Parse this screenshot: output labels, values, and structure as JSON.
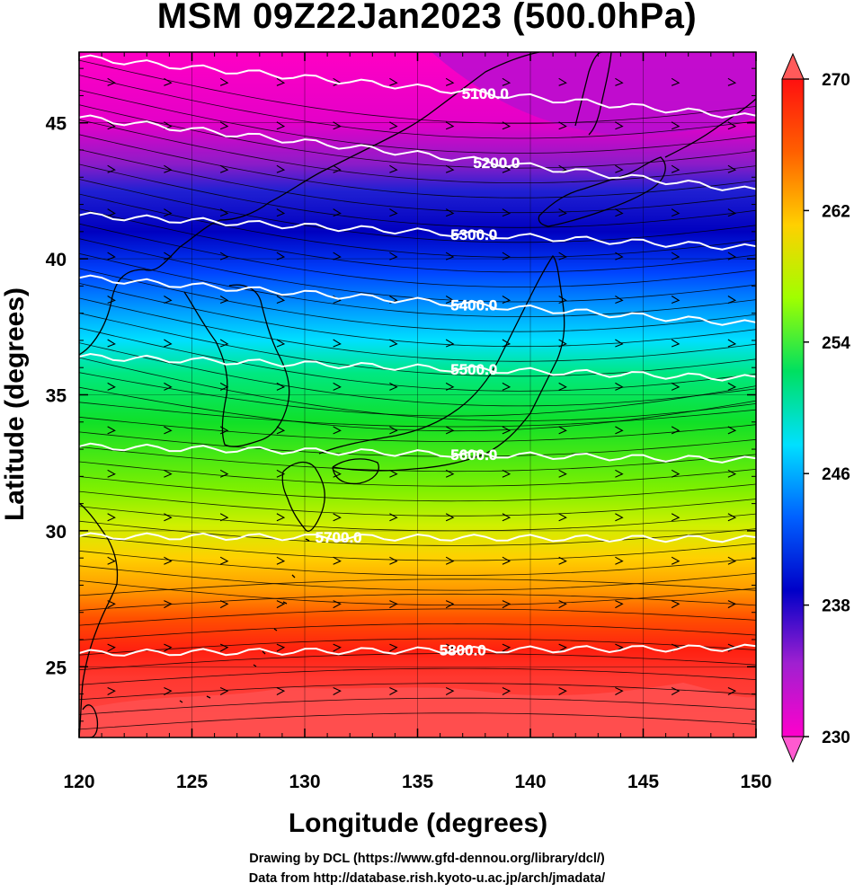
{
  "title": "MSM 09Z22Jan2023 (500.0hPa)",
  "credits": {
    "line1": "Drawing by DCL (https://www.gfd-dennou.org/library/dcl/)",
    "line2": "Data from http://database.rish.kyoto-u.ac.jp/arch/jmadata/"
  },
  "map": {
    "xlabel": "Longitude (degrees)",
    "ylabel": "Latitude  (degrees)",
    "xlim": [
      120,
      150
    ],
    "ylim": [
      22.4,
      47.6
    ],
    "xticks": [
      120,
      125,
      130,
      135,
      140,
      145,
      150
    ],
    "yticks": [
      25,
      30,
      35,
      40,
      45
    ],
    "contours": [
      {
        "label": "5100.0",
        "lat": 47.4,
        "tilt": -2.2,
        "labelLon": 138.0
      },
      {
        "label": "5200.0",
        "lat": 45.2,
        "tilt": -2.7,
        "labelLon": 138.5
      },
      {
        "label": "5300.0",
        "lat": 41.6,
        "tilt": -1.2,
        "labelLon": 137.5
      },
      {
        "label": "5400.0",
        "lat": 39.3,
        "tilt": -1.7,
        "labelLon": 137.5
      },
      {
        "label": "5500.0",
        "lat": 36.4,
        "tilt": -0.8,
        "labelLon": 137.5
      },
      {
        "label": "5600.0",
        "lat": 33.1,
        "tilt": -0.5,
        "labelLon": 137.5
      },
      {
        "label": "5700.0",
        "lat": 29.8,
        "tilt": -0.1,
        "labelLon": 131.5
      },
      {
        "label": "5800.0",
        "lat": 25.5,
        "tilt": 0.2,
        "labelLon": 137.0
      }
    ]
  },
  "colorbar": {
    "min": 230,
    "max": 270,
    "ticks": [
      230,
      238,
      246,
      254,
      262,
      270
    ],
    "colors": [
      "#ff00cc",
      "#a020d0",
      "#0000c8",
      "#0060ff",
      "#00e0ff",
      "#00e060",
      "#a0ff00",
      "#ffd000",
      "#ff6000",
      "#ff1010"
    ],
    "over_color": "#ff5a5a",
    "under_color": "#ff5ad0"
  },
  "field_color_stops": [
    {
      "lat": 47.6,
      "color": "#ff00c4"
    },
    {
      "lat": 45.0,
      "color": "#e400c8"
    },
    {
      "lat": 43.5,
      "color": "#8c1cc8"
    },
    {
      "lat": 42.5,
      "color": "#2020d2"
    },
    {
      "lat": 41.0,
      "color": "#0000c0"
    },
    {
      "lat": 39.5,
      "color": "#0044ff"
    },
    {
      "lat": 38.2,
      "color": "#0098ff"
    },
    {
      "lat": 37.0,
      "color": "#00e0ff"
    },
    {
      "lat": 35.8,
      "color": "#00e882"
    },
    {
      "lat": 34.0,
      "color": "#10e028"
    },
    {
      "lat": 31.5,
      "color": "#80f000"
    },
    {
      "lat": 30.2,
      "color": "#d0f000"
    },
    {
      "lat": 29.0,
      "color": "#ffd000"
    },
    {
      "lat": 27.8,
      "color": "#ff9800"
    },
    {
      "lat": 26.8,
      "color": "#ff5000"
    },
    {
      "lat": 25.6,
      "color": "#ff2010"
    },
    {
      "lat": 24.6,
      "color": "#ff3830"
    },
    {
      "lat": 22.4,
      "color": "#ff4848"
    }
  ]
}
